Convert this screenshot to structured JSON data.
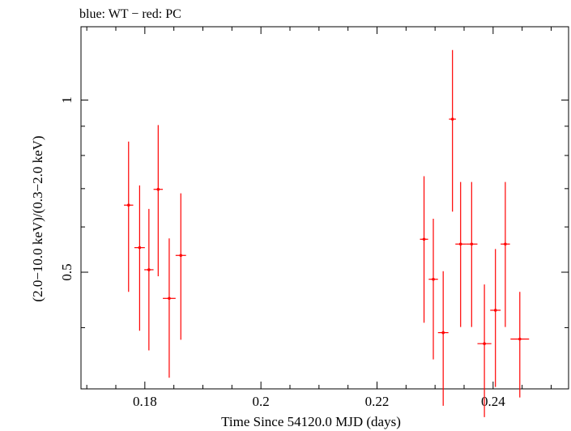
{
  "chart_data": {
    "type": "scatter",
    "title": "blue: WT − red: PC",
    "xlabel": "Time Since 54120.0 MJD (days)",
    "ylabel": "(2.0−10.0 keV)/(0.3−2.0 keV)",
    "y_scale": "log",
    "xlim": [
      0.169,
      0.253
    ],
    "ylim": [
      0.3126,
      1.3433
    ],
    "x_ticks": [
      {
        "value": 0.18,
        "label": "0.18"
      },
      {
        "value": 0.2,
        "label": "0.2"
      },
      {
        "value": 0.22,
        "label": "0.22"
      },
      {
        "value": 0.24,
        "label": "0.24"
      }
    ],
    "y_ticks": [
      {
        "value": 0.5,
        "label": "0.5"
      },
      {
        "value": 1.0,
        "label": "1"
      }
    ],
    "grid": false,
    "series": [
      {
        "name": "PC",
        "color": "#ff0000",
        "points": [
          {
            "x": 0.1772,
            "xerr": 0.0008,
            "y": 0.655,
            "ylo": 0.462,
            "yhi": 0.846
          },
          {
            "x": 0.1791,
            "xerr": 0.0009,
            "y": 0.552,
            "ylo": 0.395,
            "yhi": 0.709
          },
          {
            "x": 0.1807,
            "xerr": 0.0008,
            "y": 0.505,
            "ylo": 0.365,
            "yhi": 0.645
          },
          {
            "x": 0.1823,
            "xerr": 0.0008,
            "y": 0.698,
            "ylo": 0.492,
            "yhi": 0.904
          },
          {
            "x": 0.1842,
            "xerr": 0.0011,
            "y": 0.45,
            "ylo": 0.327,
            "yhi": 0.573
          },
          {
            "x": 0.1862,
            "xerr": 0.0009,
            "y": 0.535,
            "ylo": 0.381,
            "yhi": 0.687
          },
          {
            "x": 0.2281,
            "xerr": 0.0007,
            "y": 0.571,
            "ylo": 0.408,
            "yhi": 0.736
          },
          {
            "x": 0.2297,
            "xerr": 0.0008,
            "y": 0.486,
            "ylo": 0.352,
            "yhi": 0.62
          },
          {
            "x": 0.2314,
            "xerr": 0.0009,
            "y": 0.392,
            "ylo": 0.292,
            "yhi": 0.502
          },
          {
            "x": 0.233,
            "xerr": 0.0006,
            "y": 0.926,
            "ylo": 0.638,
            "yhi": 1.223
          },
          {
            "x": 0.2344,
            "xerr": 0.0009,
            "y": 0.56,
            "ylo": 0.401,
            "yhi": 0.719
          },
          {
            "x": 0.2363,
            "xerr": 0.001,
            "y": 0.56,
            "ylo": 0.401,
            "yhi": 0.719
          },
          {
            "x": 0.2385,
            "xerr": 0.0012,
            "y": 0.375,
            "ylo": 0.279,
            "yhi": 0.476
          },
          {
            "x": 0.2404,
            "xerr": 0.0009,
            "y": 0.429,
            "ylo": 0.315,
            "yhi": 0.549
          },
          {
            "x": 0.2421,
            "xerr": 0.0008,
            "y": 0.56,
            "ylo": 0.401,
            "yhi": 0.719
          },
          {
            "x": 0.2446,
            "xerr": 0.0016,
            "y": 0.382,
            "ylo": 0.302,
            "yhi": 0.462
          }
        ]
      }
    ]
  }
}
